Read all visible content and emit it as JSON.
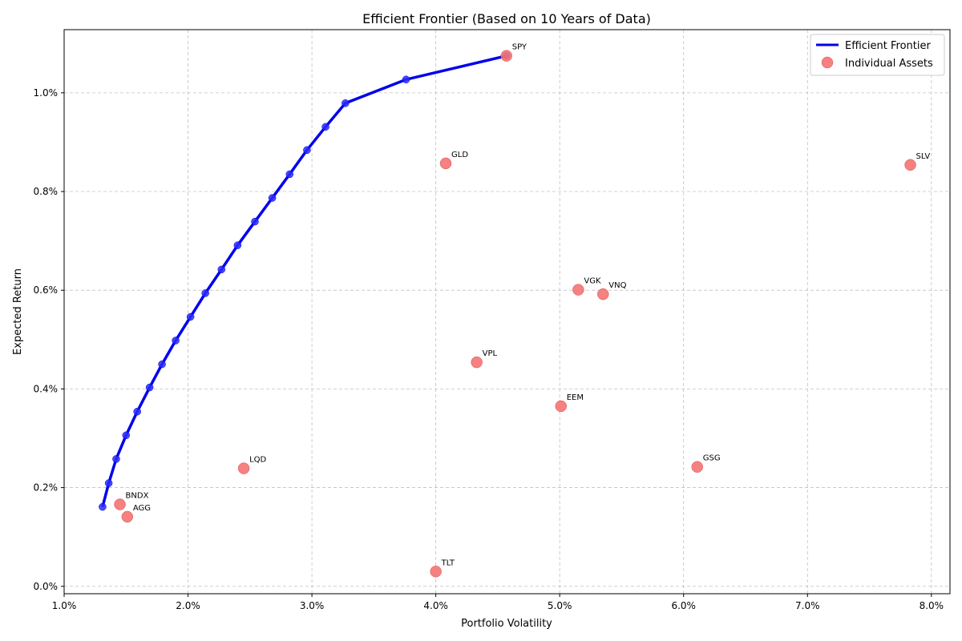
{
  "chart_data": {
    "type": "scatter",
    "title": "Efficient Frontier (Based on 10 Years of Data)",
    "xlabel": "Portfolio Volatility",
    "ylabel": "Expected Return",
    "xlim": [
      1.0,
      8.15
    ],
    "ylim": [
      -0.015,
      1.128
    ],
    "xticks": [
      1.0,
      2.0,
      3.0,
      4.0,
      5.0,
      6.0,
      7.0,
      8.0
    ],
    "xtick_labels": [
      "1.0%",
      "2.0%",
      "3.0%",
      "4.0%",
      "5.0%",
      "6.0%",
      "7.0%",
      "8.0%"
    ],
    "yticks": [
      0.0,
      0.2,
      0.4,
      0.6,
      0.8,
      1.0
    ],
    "ytick_labels": [
      "0.0%",
      "0.2%",
      "0.4%",
      "0.6%",
      "0.8%",
      "1.0%"
    ],
    "grid": true,
    "legend_position": "top-right",
    "legend": [
      "Efficient Frontier",
      "Individual Assets"
    ],
    "frontier": {
      "name": "Efficient Frontier",
      "color": "#0000ee",
      "points": [
        [
          1.31,
          0.161
        ],
        [
          1.36,
          0.209
        ],
        [
          1.42,
          0.258
        ],
        [
          1.5,
          0.306
        ],
        [
          1.59,
          0.354
        ],
        [
          1.69,
          0.403
        ],
        [
          1.79,
          0.45
        ],
        [
          1.9,
          0.498
        ],
        [
          2.02,
          0.546
        ],
        [
          2.14,
          0.594
        ],
        [
          2.27,
          0.642
        ],
        [
          2.4,
          0.691
        ],
        [
          2.54,
          0.739
        ],
        [
          2.68,
          0.787
        ],
        [
          2.82,
          0.835
        ],
        [
          2.96,
          0.884
        ],
        [
          3.11,
          0.931
        ],
        [
          3.27,
          0.979
        ],
        [
          3.76,
          1.027
        ],
        [
          4.57,
          1.075
        ]
      ]
    },
    "assets": {
      "name": "Individual Assets",
      "color": "#f47373",
      "points": [
        {
          "label": "SPY",
          "x": 4.57,
          "y": 1.075
        },
        {
          "label": "GLD",
          "x": 4.08,
          "y": 0.857
        },
        {
          "label": "SLV",
          "x": 7.83,
          "y": 0.854
        },
        {
          "label": "VGK",
          "x": 5.15,
          "y": 0.601
        },
        {
          "label": "VNQ",
          "x": 5.35,
          "y": 0.592
        },
        {
          "label": "VPL",
          "x": 4.33,
          "y": 0.454
        },
        {
          "label": "EEM",
          "x": 5.01,
          "y": 0.365
        },
        {
          "label": "LQD",
          "x": 2.45,
          "y": 0.239
        },
        {
          "label": "GSG",
          "x": 6.11,
          "y": 0.242
        },
        {
          "label": "BNDX",
          "x": 1.45,
          "y": 0.166
        },
        {
          "label": "AGG",
          "x": 1.51,
          "y": 0.141
        },
        {
          "label": "TLT",
          "x": 4.0,
          "y": 0.03
        }
      ]
    }
  }
}
